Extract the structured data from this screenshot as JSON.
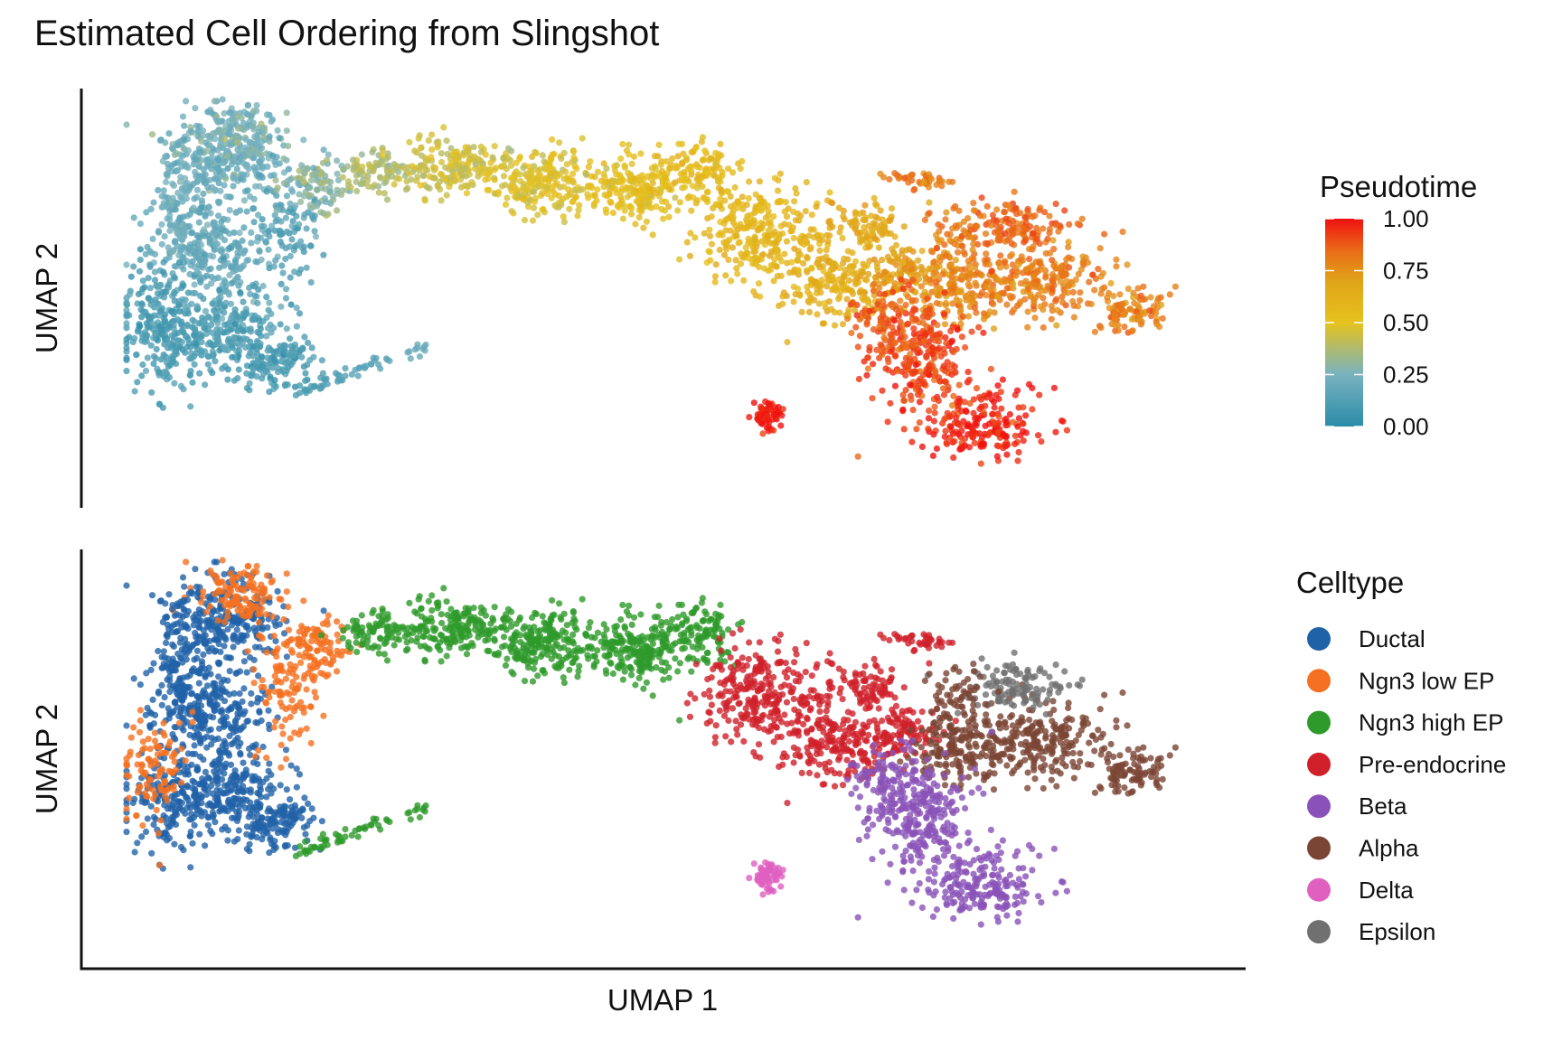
{
  "title": "Estimated Cell Ordering from Slingshot",
  "chart_data": [
    {
      "type": "scatter",
      "xlabel": "",
      "ylabel": "UMAP 2",
      "color_by": "Pseudotime",
      "legend": {
        "title": "Pseudotime",
        "placement": "right",
        "ticks": [
          "1.00",
          "0.75",
          "0.50",
          "0.25",
          "0.00"
        ],
        "gradient": [
          "#2b8ca8",
          "#79b2bf",
          "#e6c21e",
          "#e0a419",
          "#ea6a18",
          "#f01010"
        ]
      },
      "point_alpha": 0.8
    },
    {
      "type": "scatter",
      "xlabel": "UMAP 1",
      "ylabel": "UMAP 2",
      "color_by": "Celltype",
      "legend": {
        "title": "Celltype",
        "placement": "right",
        "entries": [
          {
            "name": "Ductal",
            "color": "#2062a8"
          },
          {
            "name": "Ngn3 low EP",
            "color": "#f57020"
          },
          {
            "name": "Ngn3 high EP",
            "color": "#2e9a2a"
          },
          {
            "name": "Pre-endocrine",
            "color": "#d0202a"
          },
          {
            "name": "Beta",
            "color": "#8a52b8"
          },
          {
            "name": "Alpha",
            "color": "#7a4535"
          },
          {
            "name": "Delta",
            "color": "#e060c0"
          },
          {
            "name": "Epsilon",
            "color": "#707070"
          }
        ]
      },
      "point_alpha": 0.8
    }
  ]
}
